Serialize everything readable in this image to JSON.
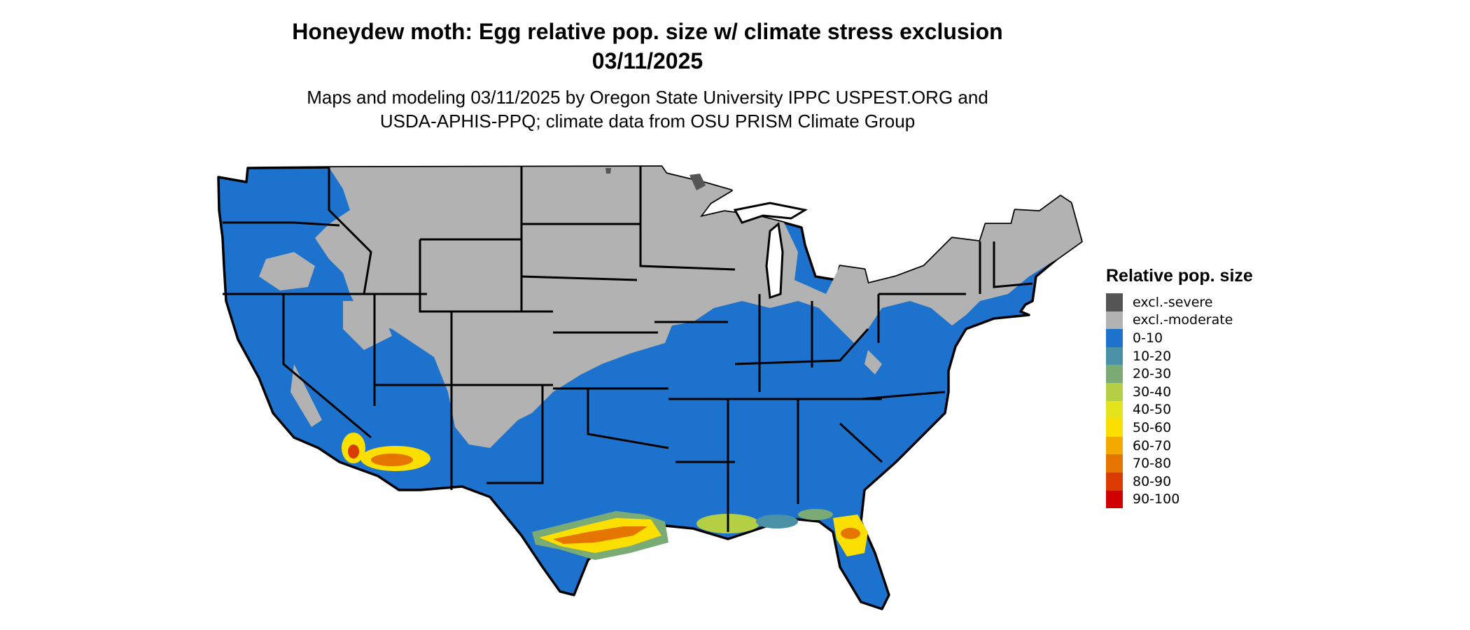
{
  "header": {
    "title_line1": "Honeydew moth: Egg relative pop. size w/ climate stress exclusion",
    "title_line2": "03/11/2025",
    "subtitle_line1": "Maps and modeling 03/11/2025 by Oregon State University IPPC USPEST.ORG and",
    "subtitle_line2": "USDA-APHIS-PPQ; climate data from OSU PRISM Climate Group"
  },
  "legend": {
    "title": "Relative pop. size",
    "items": [
      {
        "label": "excl.-severe",
        "color": "#555555"
      },
      {
        "label": "excl.-moderate",
        "color": "#b2b2b2"
      },
      {
        "label": "0-10",
        "color": "#1c72cc"
      },
      {
        "label": "10-20",
        "color": "#4a91a8"
      },
      {
        "label": "20-30",
        "color": "#7aab74"
      },
      {
        "label": "30-40",
        "color": "#b4cf44"
      },
      {
        "label": "40-50",
        "color": "#e5e41c"
      },
      {
        "label": "50-60",
        "color": "#fbdf00"
      },
      {
        "label": "60-70",
        "color": "#f3a900"
      },
      {
        "label": "70-80",
        "color": "#e67400"
      },
      {
        "label": "80-90",
        "color": "#d93b00"
      },
      {
        "label": "90-100",
        "color": "#d00000"
      }
    ]
  }
}
